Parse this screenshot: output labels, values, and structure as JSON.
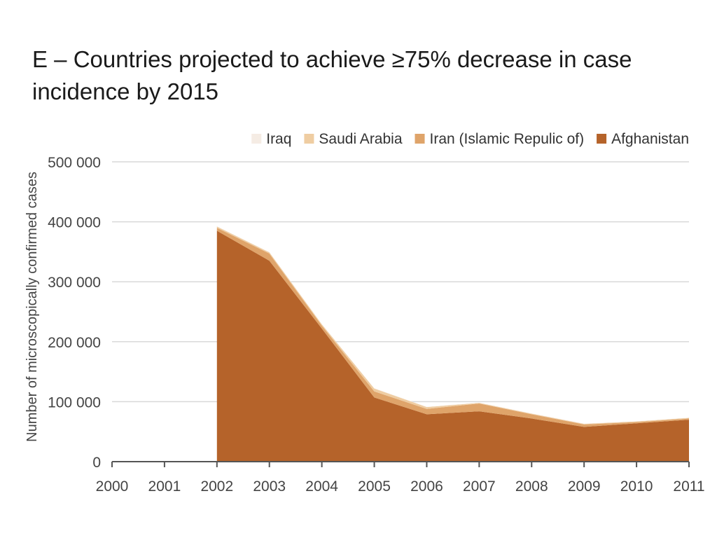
{
  "chart_data": {
    "type": "area",
    "stacked": true,
    "title": "E – Countries projected to achieve ≥75% decrease in case incidence by 2015",
    "xlabel": "",
    "ylabel": "Number of microscopically confirmed cases",
    "x": [
      2000,
      2001,
      2002,
      2003,
      2004,
      2005,
      2006,
      2007,
      2008,
      2009,
      2010,
      2011
    ],
    "x_tick_labels": [
      "2000",
      "2001",
      "2002",
      "2003",
      "2004",
      "2005",
      "2006",
      "2007",
      "2008",
      "2009",
      "2010",
      "2011"
    ],
    "ylim": [
      0,
      500000
    ],
    "y_ticks": [
      0,
      100000,
      200000,
      300000,
      400000,
      500000
    ],
    "y_tick_labels": [
      "0",
      "100 000",
      "200 000",
      "300 000",
      "400 000",
      "500 000"
    ],
    "grid": true,
    "legend_position": "top-right",
    "series": [
      {
        "name": "Afghanistan",
        "color": "#b5632a",
        "values": [
          null,
          null,
          385000,
          335000,
          222000,
          107000,
          79000,
          84000,
          72000,
          58000,
          64000,
          70000
        ]
      },
      {
        "name": "Iran (Islamic Repulic of)",
        "color": "#dfa46a",
        "values": [
          null,
          null,
          5000,
          12000,
          5000,
          10000,
          9000,
          13000,
          7000,
          4000,
          2000,
          2000
        ]
      },
      {
        "name": "Saudi Arabia",
        "color": "#efcda2",
        "values": [
          null,
          null,
          2000,
          2000,
          2000,
          5000,
          3000,
          1000,
          1000,
          1000,
          1000,
          1000
        ]
      },
      {
        "name": "Iraq",
        "color": "#f5ece4",
        "values": [
          null,
          null,
          500,
          500,
          500,
          500,
          500,
          500,
          500,
          500,
          500,
          500
        ]
      }
    ],
    "legend_order": [
      "Iraq",
      "Saudi Arabia",
      "Iran (Islamic Repulic of)",
      "Afghanistan"
    ]
  }
}
